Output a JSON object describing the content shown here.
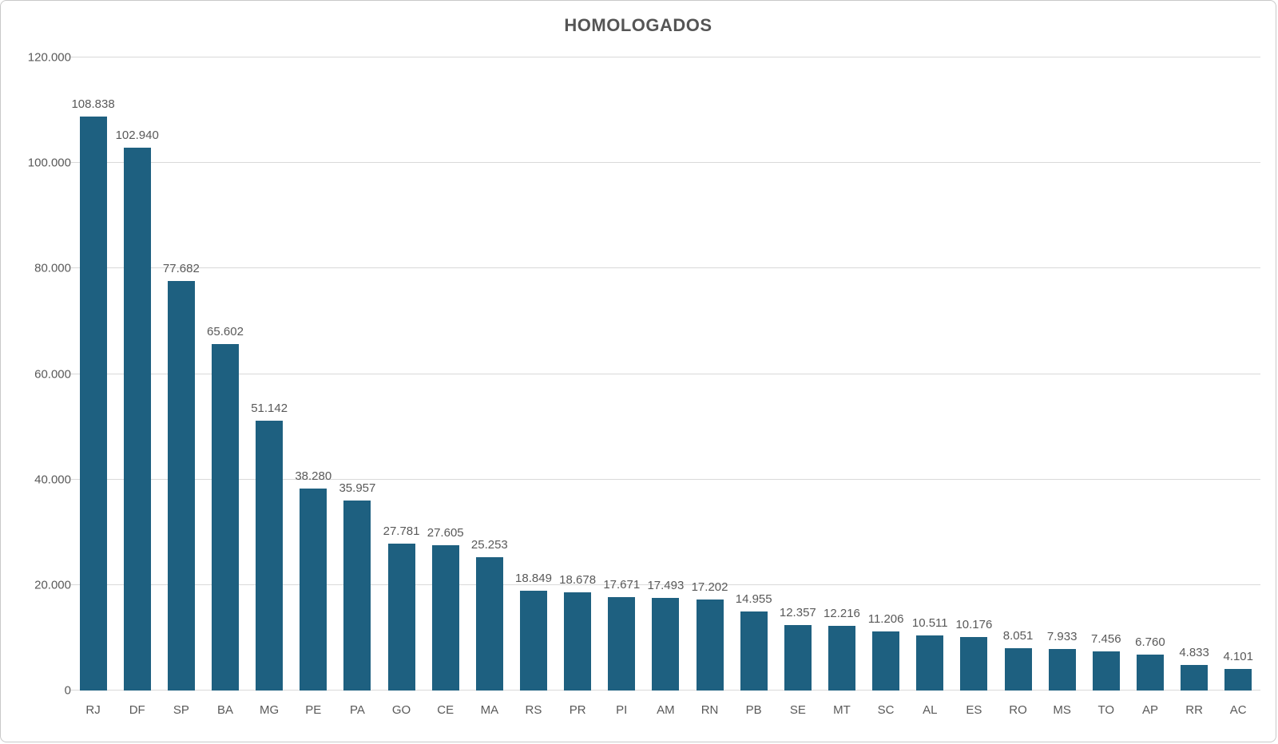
{
  "chart_data": {
    "type": "bar",
    "title": "HOMOLOGADOS",
    "xlabel": "",
    "ylabel": "",
    "ylim": [
      0,
      120000
    ],
    "grid": "horizontal",
    "legend": "none",
    "categories": [
      "RJ",
      "DF",
      "SP",
      "BA",
      "MG",
      "PE",
      "PA",
      "GO",
      "CE",
      "MA",
      "RS",
      "PR",
      "PI",
      "AM",
      "RN",
      "PB",
      "SE",
      "MT",
      "SC",
      "AL",
      "ES",
      "RO",
      "MS",
      "TO",
      "AP",
      "RR",
      "AC"
    ],
    "values": [
      108838,
      102940,
      77682,
      65602,
      51142,
      38280,
      35957,
      27781,
      27605,
      25253,
      18849,
      18678,
      17671,
      17493,
      17202,
      14955,
      12357,
      12216,
      11206,
      10511,
      10176,
      8051,
      7933,
      7456,
      6760,
      4833,
      4101
    ],
    "value_labels": [
      "108.838",
      "102.940",
      "77.682",
      "65.602",
      "51.142",
      "38.280",
      "35.957",
      "27.781",
      "27.605",
      "25.253",
      "18.849",
      "18.678",
      "17.671",
      "17.493",
      "17.202",
      "14.955",
      "12.357",
      "12.216",
      "11.206",
      "10.511",
      "10.176",
      "8.051",
      "7.933",
      "7.456",
      "6.760",
      "4.833",
      "4.101"
    ],
    "y_ticks": [
      {
        "label": "0",
        "value": 0
      },
      {
        "label": "20.000",
        "value": 20000
      },
      {
        "label": "40.000",
        "value": 40000
      },
      {
        "label": "60.000",
        "value": 60000
      },
      {
        "label": "80.000",
        "value": 80000
      },
      {
        "label": "100.000",
        "value": 100000
      },
      {
        "label": "120.000",
        "value": 120000
      }
    ],
    "colors": {
      "bar": "#1e6080",
      "grid": "#d9d9d9",
      "axis_text": "#595959",
      "title_text": "#555555",
      "border": "#c9c9c9",
      "background": "#ffffff"
    }
  }
}
